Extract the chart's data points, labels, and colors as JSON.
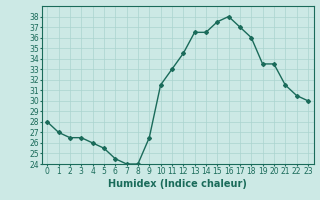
{
  "x": [
    0,
    1,
    2,
    3,
    4,
    5,
    6,
    7,
    8,
    9,
    10,
    11,
    12,
    13,
    14,
    15,
    16,
    17,
    18,
    19,
    20,
    21,
    22,
    23
  ],
  "y": [
    28,
    27,
    26.5,
    26.5,
    26,
    25.5,
    24.5,
    24,
    24,
    26.5,
    31.5,
    33,
    34.5,
    36.5,
    36.5,
    37.5,
    38,
    37,
    36,
    33.5,
    33.5,
    31.5,
    30.5,
    30
  ],
  "line_color": "#1a6b5a",
  "marker": "D",
  "marker_size": 2.0,
  "bg_color": "#cce9e5",
  "grid_color": "#aad4cf",
  "xlabel": "Humidex (Indice chaleur)",
  "ylim": [
    24,
    39
  ],
  "xlim": [
    -0.5,
    23.5
  ],
  "yticks": [
    24,
    25,
    26,
    27,
    28,
    29,
    30,
    31,
    32,
    33,
    34,
    35,
    36,
    37,
    38
  ],
  "xticks": [
    0,
    1,
    2,
    3,
    4,
    5,
    6,
    7,
    8,
    9,
    10,
    11,
    12,
    13,
    14,
    15,
    16,
    17,
    18,
    19,
    20,
    21,
    22,
    23
  ],
  "tick_label_size": 5.5,
  "xlabel_size": 7.0,
  "line_width": 1.0
}
